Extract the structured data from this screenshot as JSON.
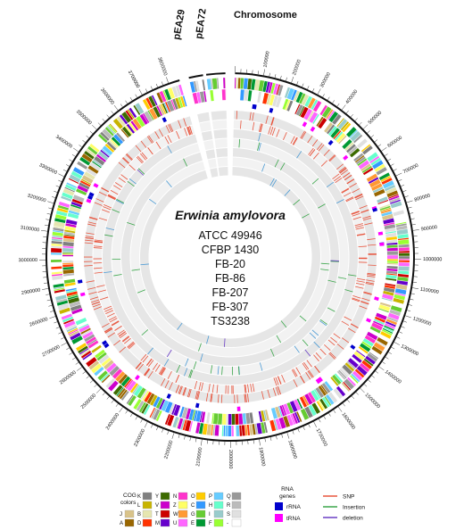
{
  "labels": {
    "chromosome": "Chromosome",
    "plasmids": [
      "pEA29",
      "pEA72"
    ]
  },
  "center": {
    "species": "Erwinia amylovora",
    "strains": [
      "ATCC 49946",
      "CFBP 1430",
      "FB-20",
      "FB-86",
      "FB-207",
      "FB-307",
      "TS3238"
    ]
  },
  "position_ticks": [
    "100000",
    "200000",
    "300000",
    "400000",
    "500000",
    "600000",
    "700000",
    "800000",
    "900000",
    "1000000",
    "1100000",
    "1200000",
    "1300000",
    "1400000",
    "1500000",
    "1600000",
    "1700000",
    "1800000",
    "1900000",
    "2000000",
    "2100000",
    "2200000",
    "2300000",
    "2400000",
    "2500000",
    "2600000",
    "2700000",
    "2800000",
    "2900000",
    "3000000",
    "3100000",
    "3200000",
    "3300000",
    "3400000",
    "3500000",
    "3600000",
    "3700000",
    "3800000"
  ],
  "legend": {
    "cog": {
      "title": [
        "COG",
        "colors"
      ],
      "rows": [
        [
          {
            "code": "K",
            "color": "#808080"
          },
          {
            "code": "Y",
            "color": "#3d6b00"
          },
          {
            "code": "N",
            "color": "#ff33cc"
          },
          {
            "code": "O",
            "color": "#ffcc00"
          },
          {
            "code": "P",
            "color": "#66ccff"
          },
          {
            "code": "Q",
            "color": "#999999"
          }
        ],
        [
          {
            "code": "L",
            "color": "#c8b400"
          },
          {
            "code": "V",
            "color": "#cc00cc"
          },
          {
            "code": "Z",
            "color": "#ffff66"
          },
          {
            "code": "C",
            "color": "#3399ff"
          },
          {
            "code": "H",
            "color": "#66ffcc"
          },
          {
            "code": "R",
            "color": "#bbbbbb"
          }
        ],
        [
          {
            "code": "J",
            "color": "#d9c38a"
          },
          {
            "code": "B",
            "color": "#e6e6b0"
          },
          {
            "code": "T",
            "color": "#cc0000"
          },
          {
            "code": "W",
            "color": "#ff9933"
          },
          {
            "code": "G",
            "color": "#66cc33"
          },
          {
            "code": "I",
            "color": "#99cccc"
          },
          {
            "code": "S",
            "color": "#e0e0e0"
          }
        ],
        [
          {
            "code": "A",
            "color": "#996600"
          },
          {
            "code": "D",
            "color": "#ff3300"
          },
          {
            "code": "M",
            "color": "#6600cc"
          },
          {
            "code": "U",
            "color": "#ff66ff"
          },
          {
            "code": "E",
            "color": "#009933"
          },
          {
            "code": "F",
            "color": "#99ff33"
          },
          {
            "code": "-",
            "color": "#ffffff"
          }
        ]
      ]
    },
    "rna": {
      "title": [
        "RNA",
        "genes"
      ],
      "items": [
        {
          "label": "rRNA",
          "color": "#0000cc"
        },
        {
          "label": "tRNA",
          "color": "#ff00ff"
        }
      ]
    },
    "variants": [
      {
        "label": "SNP",
        "color": "#e8553e"
      },
      {
        "label": "Insertion",
        "color": "#3aa64a"
      },
      {
        "label": "deletion",
        "color": "#6a3fc4"
      }
    ]
  }
}
